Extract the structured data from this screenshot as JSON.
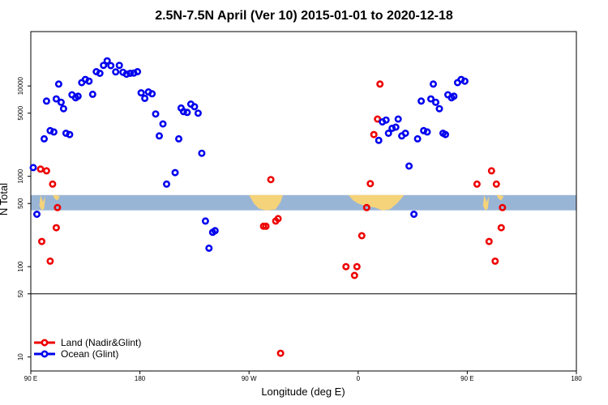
{
  "chart_data": {
    "type": "scatter",
    "title": "2.5N-7.5N April (Ver 10)   2015-01-01 to 2020-12-18",
    "xlabel": "Longitude (deg E)",
    "ylabel": "N Total",
    "x_scale": "longitude, 90E to 180 via 0 (one and a half wraps)",
    "y_scale": "log",
    "ylim": [
      7,
      40000
    ],
    "x_ticks": [
      {
        "value": 90,
        "label": "90 E"
      },
      {
        "value": 180,
        "label": "180"
      },
      {
        "value": 270,
        "label": "90 W"
      },
      {
        "value": 360,
        "label": "0"
      },
      {
        "value": 450,
        "label": "90 E"
      },
      {
        "value": 540,
        "label": "180"
      }
    ],
    "y_ticks": [
      {
        "value": 10,
        "label": "10"
      },
      {
        "value": 50,
        "label": "50"
      },
      {
        "value": 100,
        "label": "100"
      },
      {
        "value": 500,
        "label": "500"
      },
      {
        "value": 1000,
        "label": "1000"
      },
      {
        "value": 5000,
        "label": "5000"
      },
      {
        "value": 10000,
        "label": "10000"
      }
    ],
    "reference_line": 50,
    "map_band": {
      "y_low": 420,
      "y_high": 620,
      "ocean_color": "#99b5d6",
      "land_color": "#f5d37a"
    },
    "grid": false,
    "legend_position": "bottom-left",
    "series": [
      {
        "name": "Land (Nadir&Glint)",
        "color": "#ee0000",
        "points": [
          [
            98,
            1200
          ],
          [
            99,
            190
          ],
          [
            103,
            1150
          ],
          [
            106,
            115
          ],
          [
            108,
            820
          ],
          [
            111,
            270
          ],
          [
            112,
            450
          ],
          [
            282,
            280
          ],
          [
            284,
            280
          ],
          [
            288,
            920
          ],
          [
            292,
            320
          ],
          [
            294,
            340
          ],
          [
            296,
            11
          ],
          [
            350,
            100
          ],
          [
            357,
            80
          ],
          [
            359,
            100
          ],
          [
            363,
            220
          ],
          [
            367,
            450
          ],
          [
            370,
            830
          ],
          [
            373,
            2900
          ],
          [
            376,
            4300
          ],
          [
            378,
            10500
          ],
          [
            458,
            820
          ],
          [
            468,
            190
          ],
          [
            470,
            1150
          ],
          [
            473,
            115
          ],
          [
            474,
            820
          ],
          [
            478,
            270
          ],
          [
            479,
            450
          ]
        ]
      },
      {
        "name": "Ocean (Glint)",
        "color": "#0000ee",
        "points": [
          [
            92,
            1250
          ],
          [
            95,
            380
          ],
          [
            101,
            2600
          ],
          [
            103,
            6800
          ],
          [
            106,
            3200
          ],
          [
            109,
            3100
          ],
          [
            111,
            7200
          ],
          [
            113,
            10500
          ],
          [
            115,
            6600
          ],
          [
            117,
            5600
          ],
          [
            119,
            3000
          ],
          [
            122,
            2900
          ],
          [
            124,
            8000
          ],
          [
            127,
            7400
          ],
          [
            129,
            7700
          ],
          [
            132,
            10900
          ],
          [
            135,
            11800
          ],
          [
            138,
            11300
          ],
          [
            141,
            8100
          ],
          [
            144,
            14400
          ],
          [
            147,
            13800
          ],
          [
            150,
            16900
          ],
          [
            153,
            19000
          ],
          [
            156,
            16800
          ],
          [
            160,
            14300
          ],
          [
            163,
            16900
          ],
          [
            166,
            14200
          ],
          [
            169,
            13500
          ],
          [
            172,
            13800
          ],
          [
            175,
            13900
          ],
          [
            178,
            14400
          ],
          [
            181,
            8400
          ],
          [
            184,
            7300
          ],
          [
            187,
            8600
          ],
          [
            190,
            8200
          ],
          [
            193,
            4900
          ],
          [
            196,
            2800
          ],
          [
            199,
            3800
          ],
          [
            202,
            820
          ],
          [
            209,
            1100
          ],
          [
            212,
            2600
          ],
          [
            214,
            5700
          ],
          [
            216,
            5200
          ],
          [
            219,
            5100
          ],
          [
            222,
            6300
          ],
          [
            225,
            5900
          ],
          [
            228,
            5000
          ],
          [
            231,
            1800
          ],
          [
            234,
            320
          ],
          [
            237,
            160
          ],
          [
            240,
            240
          ],
          [
            242,
            250
          ],
          [
            377,
            2500
          ],
          [
            380,
            4000
          ],
          [
            383,
            4200
          ],
          [
            385,
            3000
          ],
          [
            388,
            3400
          ],
          [
            391,
            3500
          ],
          [
            393,
            4300
          ],
          [
            396,
            2800
          ],
          [
            399,
            3000
          ],
          [
            402,
            1300
          ],
          [
            406,
            380
          ],
          [
            409,
            2600
          ],
          [
            412,
            6800
          ],
          [
            414,
            3200
          ],
          [
            417,
            3100
          ],
          [
            420,
            7200
          ],
          [
            422,
            10500
          ],
          [
            424,
            6600
          ],
          [
            427,
            5600
          ],
          [
            430,
            3000
          ],
          [
            432,
            2900
          ],
          [
            434,
            8000
          ],
          [
            437,
            7400
          ],
          [
            439,
            7700
          ],
          [
            442,
            10900
          ],
          [
            445,
            11800
          ],
          [
            448,
            11300
          ]
        ]
      }
    ]
  }
}
